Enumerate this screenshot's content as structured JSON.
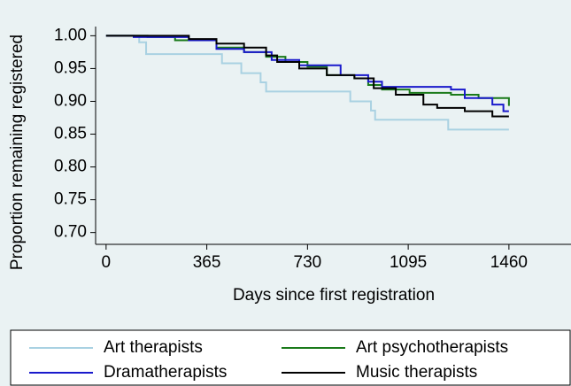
{
  "chart_data": {
    "type": "step",
    "x_label": "Days since first registration",
    "y_label": "Proportion remaining registered",
    "xlim": [
      -38,
      1685
    ],
    "xticks": [
      0,
      365,
      730,
      1095,
      1460
    ],
    "ylim": [
      0.682,
      1.014
    ],
    "yticks": [
      {
        "value": 0.7,
        "label": "0.70"
      },
      {
        "value": 0.75,
        "label": "0.75"
      },
      {
        "value": 0.8,
        "label": "0.80"
      },
      {
        "value": 0.85,
        "label": "0.85"
      },
      {
        "value": 0.9,
        "label": "0.90"
      },
      {
        "value": 0.95,
        "label": "0.95"
      },
      {
        "value": 1,
        "label": "1.00"
      }
    ],
    "series": [
      {
        "name": "Art therapists",
        "color": "#a9d1e2",
        "x": [
          0,
          120,
          145,
          420,
          490,
          560,
          580,
          885,
          960,
          975,
          1240,
          1460
        ],
        "values": [
          1,
          0.99,
          0.972,
          0.958,
          0.943,
          0.929,
          0.915,
          0.9,
          0.886,
          0.872,
          0.857,
          0.857
        ]
      },
      {
        "name": "Art psychotherapists",
        "color": "#1a7a1a",
        "x": [
          0,
          150,
          250,
          400,
          500,
          580,
          650,
          730,
          800,
          900,
          950,
          1000,
          1100,
          1250,
          1350,
          1460
        ],
        "values": [
          1,
          0.998,
          0.993,
          0.982,
          0.975,
          0.968,
          0.96,
          0.953,
          0.94,
          0.935,
          0.925,
          0.918,
          0.913,
          0.91,
          0.905,
          0.893
        ]
      },
      {
        "name": "Dramatherapists",
        "color": "#1a1acc",
        "x": [
          0,
          100,
          300,
          400,
          500,
          600,
          700,
          850,
          950,
          1000,
          1250,
          1300,
          1400,
          1440,
          1460
        ],
        "values": [
          1,
          0.998,
          0.993,
          0.98,
          0.975,
          0.963,
          0.955,
          0.94,
          0.93,
          0.922,
          0.918,
          0.905,
          0.895,
          0.885,
          0.885
        ]
      },
      {
        "name": "Music therapists",
        "color": "#000000",
        "x": [
          0,
          200,
          300,
          400,
          500,
          580,
          620,
          700,
          800,
          900,
          970,
          1050,
          1150,
          1200,
          1300,
          1400,
          1460
        ],
        "values": [
          1,
          1,
          0.995,
          0.988,
          0.982,
          0.97,
          0.96,
          0.95,
          0.94,
          0.935,
          0.92,
          0.91,
          0.895,
          0.89,
          0.885,
          0.877,
          0.877
        ]
      }
    ]
  }
}
